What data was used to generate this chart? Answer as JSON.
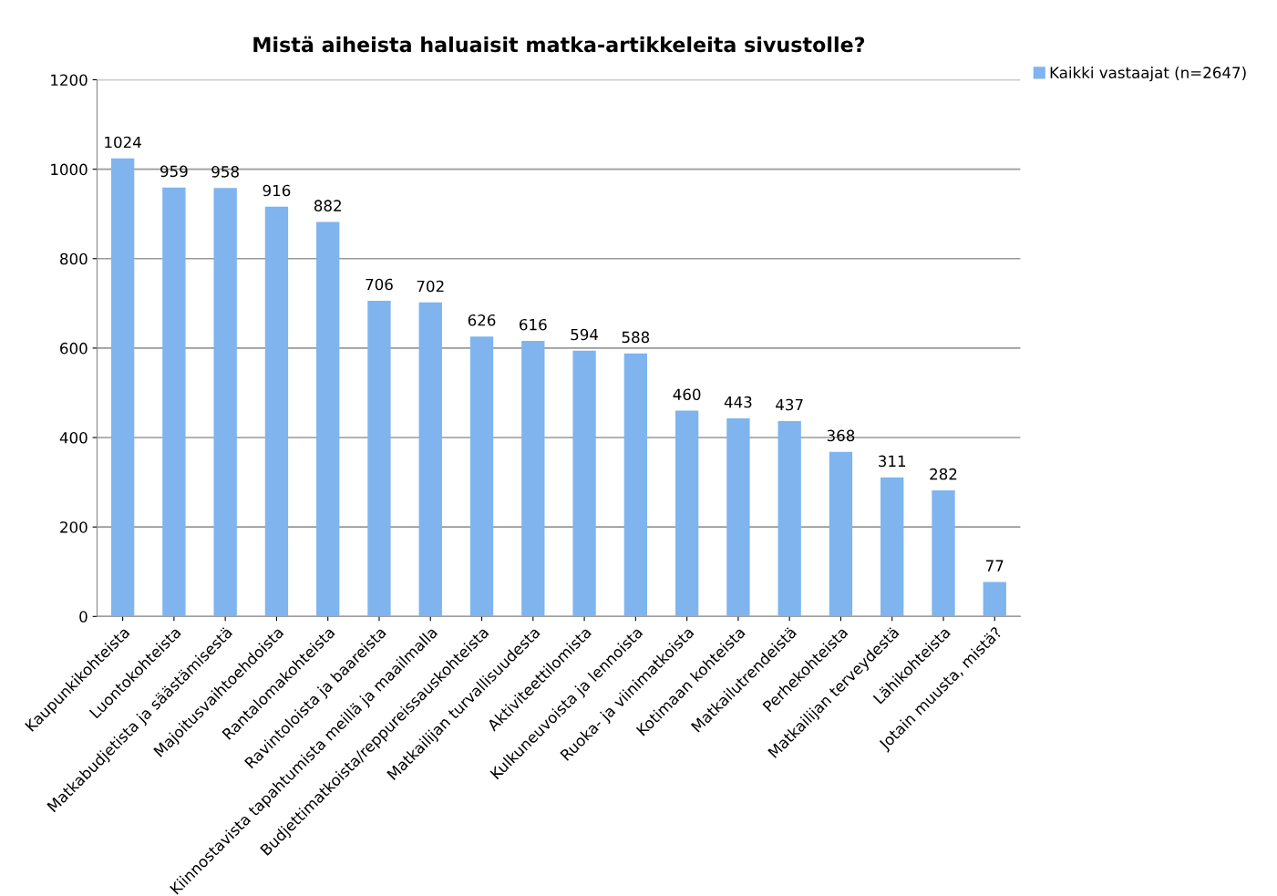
{
  "chart_data": {
    "type": "bar",
    "title": "Mistä aiheista haluaisit matka-artikkeleita sivustolle?",
    "categories": [
      "Kaupunkikohteista",
      "Luontokohteista",
      "Matkabudjetista ja säästämisestä",
      "Majoitusvaihtoehdoista",
      "Rantalomakohteista",
      "Ravintoloista ja baareista",
      "Kiinnostavista tapahtumista meillä ja maailmalla",
      "Budjettimatkoista/reppureissauskohteista",
      "Matkailijan turvallisuudesta",
      "Aktiviteettilomista",
      "Kulkuneuvoista ja lennoista",
      "Ruoka- ja viinimatkoista",
      "Kotimaan kohteista",
      "Matkailutrendeistä",
      "Perhekohteista",
      "Matkailijan terveydestä",
      "Lähikohteista",
      "Jotain muusta, mistä?"
    ],
    "series": [
      {
        "name": "Kaikki vastaajat (n=2647)",
        "color": "#7fb4ee",
        "values": [
          1024,
          959,
          958,
          916,
          882,
          706,
          702,
          626,
          616,
          594,
          588,
          460,
          443,
          437,
          368,
          311,
          282,
          77
        ]
      }
    ],
    "ylim": [
      0,
      1200
    ],
    "yticks": [
      0,
      200,
      400,
      600,
      800,
      1000,
      1200
    ],
    "grid": "y",
    "legend": "top right",
    "data_labels": true
  }
}
